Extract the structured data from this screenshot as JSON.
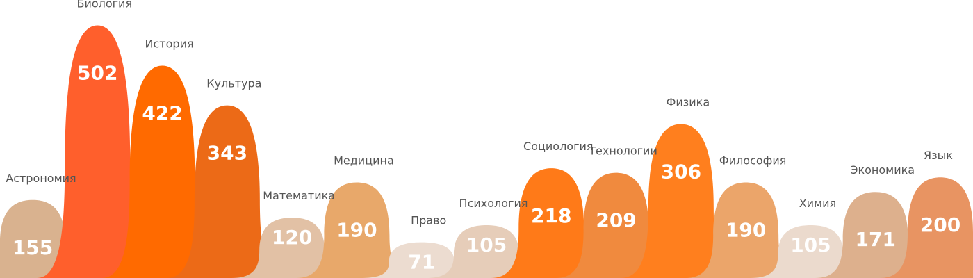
{
  "chart_data": {
    "type": "bar",
    "title": "",
    "xlabel": "",
    "ylabel": "",
    "ylim": [
      0,
      540
    ],
    "grid": false,
    "categories": [
      "Астрономия",
      "Биология",
      "История",
      "Культура",
      "Математика",
      "Медицина",
      "Право",
      "Психология",
      "Социология",
      "Технологии",
      "Физика",
      "Философия",
      "Химия",
      "Экономика",
      "Язык"
    ],
    "values": [
      155,
      502,
      422,
      343,
      120,
      190,
      71,
      105,
      218,
      209,
      306,
      190,
      105,
      171,
      200
    ],
    "colors": [
      "#D9B28F",
      "#FF5F2C",
      "#FF6A00",
      "#EC6A17",
      "#E2C1A5",
      "#E8A86A",
      "#ECDCD0",
      "#E6CDB9",
      "#FF7A18",
      "#F08A3E",
      "#FF7F1E",
      "#EBA56A",
      "#EBDACD",
      "#DDB08D",
      "#E89462"
    ],
    "value_labels": [
      "155",
      "502",
      "422",
      "343",
      "120",
      "190",
      "71",
      "105",
      "218",
      "209",
      "306",
      "190",
      "105",
      "171",
      "200"
    ]
  }
}
